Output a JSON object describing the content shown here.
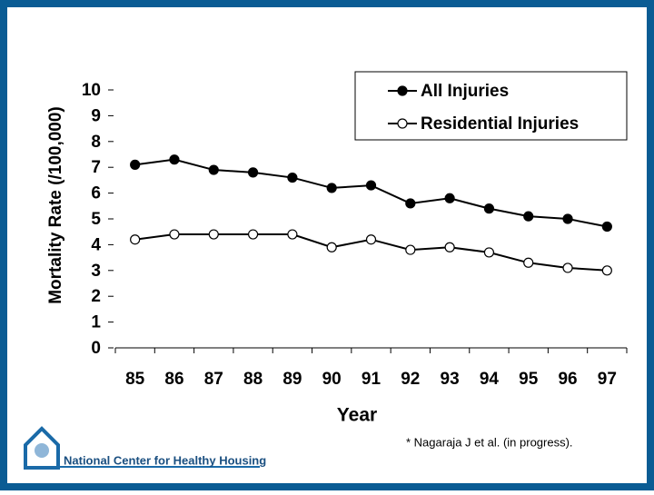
{
  "chart_data": {
    "type": "line",
    "x_label": "Year",
    "y_label": "Mortality Rate (/100,000)",
    "categories": [
      "85",
      "86",
      "87",
      "88",
      "89",
      "90",
      "91",
      "92",
      "93",
      "94",
      "95",
      "96",
      "97"
    ],
    "series": [
      {
        "name": "All Injuries",
        "color": "#000000",
        "marker_fill": "#000000",
        "values": [
          7.1,
          7.3,
          6.9,
          6.8,
          6.6,
          6.2,
          6.3,
          5.6,
          5.8,
          5.4,
          5.1,
          5.0,
          4.7
        ]
      },
      {
        "name": "Residential Injuries",
        "color": "#000000",
        "marker_fill": "#ffffff",
        "values": [
          4.2,
          4.4,
          4.4,
          4.4,
          4.4,
          3.9,
          4.2,
          3.8,
          3.9,
          3.7,
          3.3,
          3.1,
          3.0
        ]
      }
    ],
    "ylim": [
      0,
      10
    ],
    "yticks": [
      0,
      1,
      2,
      3,
      4,
      5,
      6,
      7,
      8,
      9,
      10
    ],
    "grid": false,
    "legend": "top-right"
  },
  "footnote": "* Nagaraja J et al. (in progress).",
  "logo_text": "National Center for Healthy Housing"
}
